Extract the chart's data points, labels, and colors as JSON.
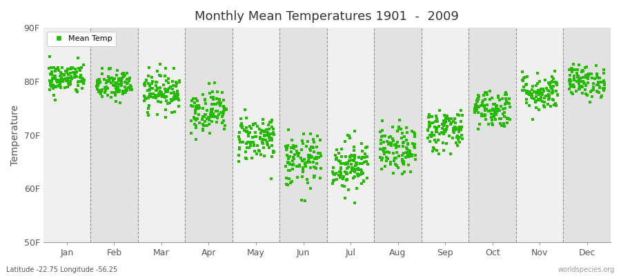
{
  "title": "Monthly Mean Temperatures 1901  -  2009",
  "ylabel": "Temperature",
  "xlabel": "",
  "ylim": [
    50,
    90
  ],
  "yticks": [
    50,
    60,
    70,
    80,
    90
  ],
  "ytick_labels": [
    "50F",
    "60F",
    "70F",
    "80F",
    "90F"
  ],
  "months": [
    "Jan",
    "Feb",
    "Mar",
    "Apr",
    "May",
    "Jun",
    "Jul",
    "Aug",
    "Sep",
    "Oct",
    "Nov",
    "Dec"
  ],
  "month_centers": [
    1,
    2,
    3,
    4,
    5,
    6,
    7,
    8,
    9,
    10,
    11,
    12
  ],
  "marker_color": "#22BB00",
  "legend_label": "Mean Temp",
  "bg_color_odd": "#F0F0F0",
  "bg_color_even": "#E2E2E2",
  "fig_bg_color": "#FFFFFF",
  "footnote_left": "Latitude -22.75 Longitude -56.25",
  "footnote_right": "worldspecies.org",
  "mean_temps_F": [
    80.5,
    79.2,
    78.2,
    74.5,
    69.5,
    65.0,
    64.5,
    67.0,
    71.0,
    75.0,
    78.0,
    80.0
  ],
  "std_temps": [
    1.5,
    1.5,
    1.8,
    2.0,
    2.2,
    2.5,
    2.5,
    2.2,
    2.0,
    1.8,
    1.8,
    1.5
  ],
  "n_years": 109,
  "seed": 42
}
